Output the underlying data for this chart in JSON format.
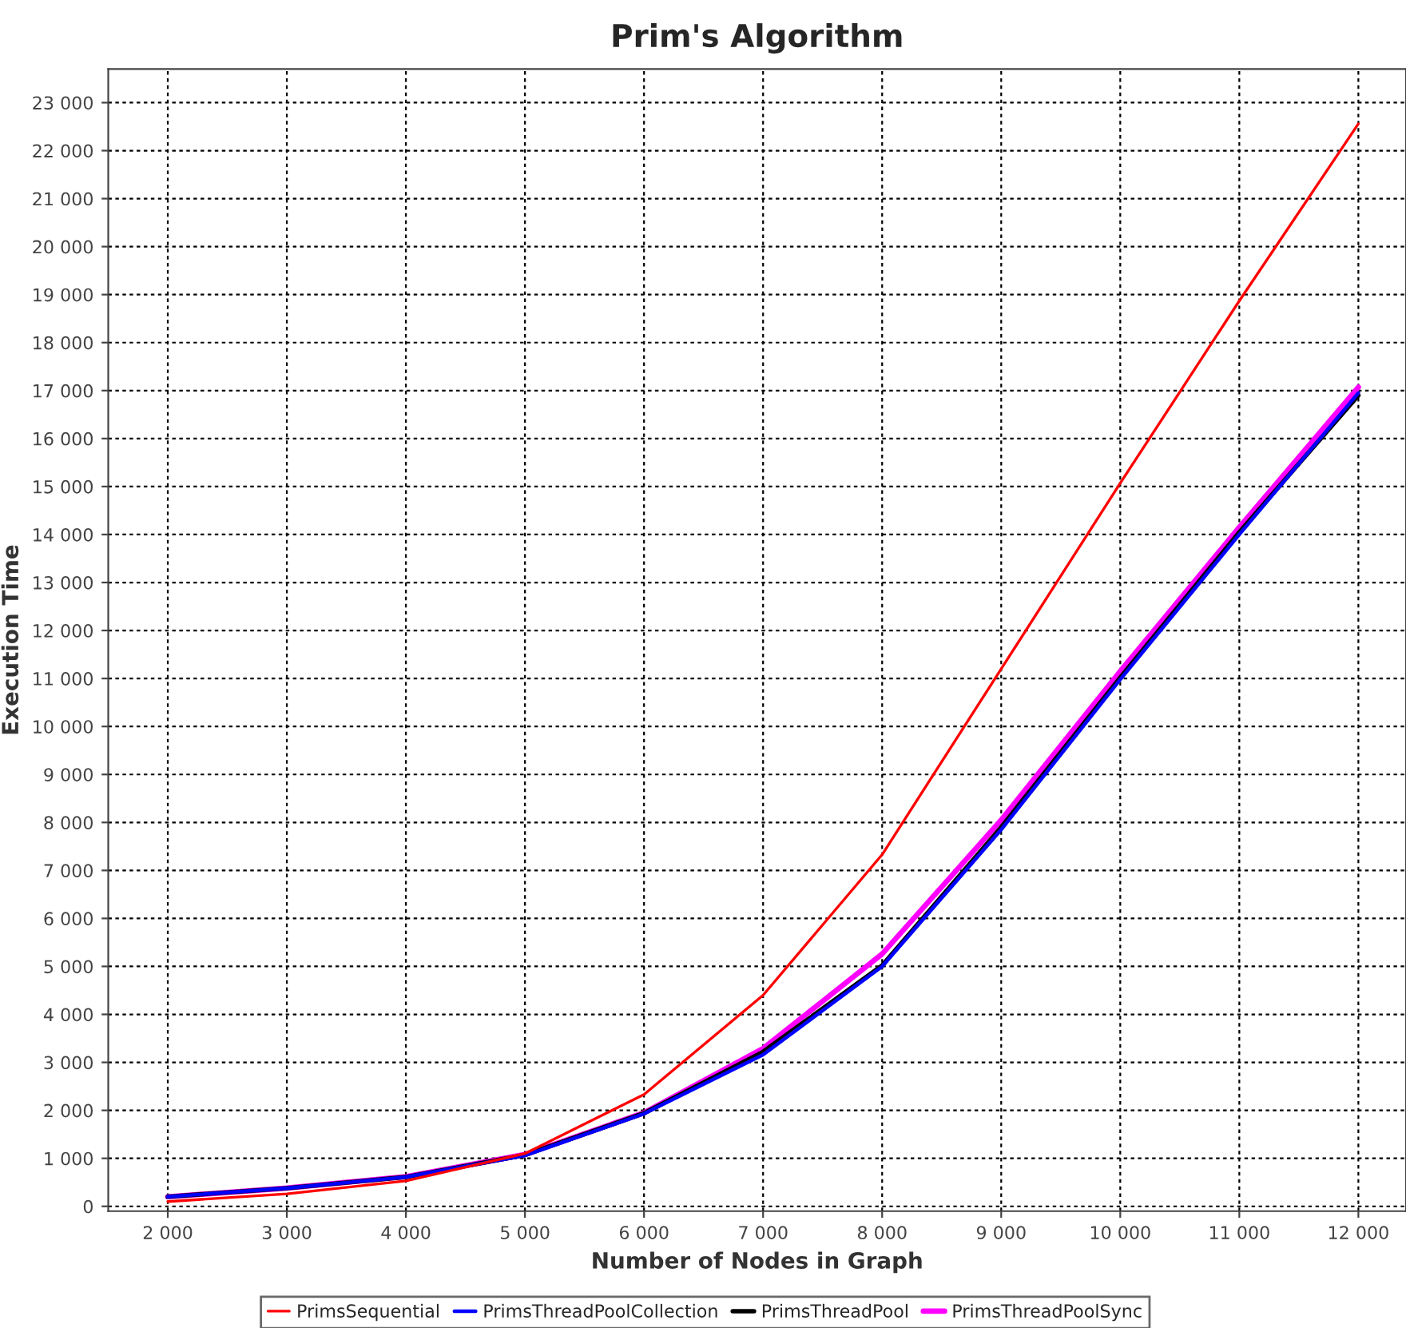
{
  "chart_data": {
    "type": "line",
    "title": "Prim's Algorithm",
    "xlabel": "Number of Nodes in Graph",
    "ylabel": "Execution Time",
    "x": [
      2000,
      3000,
      4000,
      5000,
      6000,
      7000,
      8000,
      9000,
      10000,
      11000,
      12000
    ],
    "series": [
      {
        "name": "PrimsSequential",
        "color": "#ff0000",
        "values": [
          100,
          260,
          530,
          1100,
          2330,
          4400,
          7330,
          11200,
          15070,
          18870,
          22560
        ]
      },
      {
        "name": "PrimsThreadPoolCollection",
        "color": "#0000ff",
        "values": [
          200,
          380,
          610,
          1060,
          1930,
          3160,
          5000,
          7850,
          10980,
          14000,
          16950
        ]
      },
      {
        "name": "PrimsThreadPool",
        "color": "#000000",
        "values": [
          200,
          380,
          610,
          1070,
          1940,
          3220,
          5020,
          7900,
          11020,
          14050,
          16900
        ]
      },
      {
        "name": "PrimsThreadPoolSync",
        "color": "#ff00ff",
        "values": [
          200,
          380,
          620,
          1080,
          1950,
          3290,
          5260,
          8050,
          11150,
          14150,
          17070
        ]
      }
    ],
    "xlim": [
      1500,
      12400
    ],
    "ylim": [
      -100,
      23700
    ],
    "xticks": [
      {
        "value": 2000,
        "label": "2 000"
      },
      {
        "value": 3000,
        "label": "3 000"
      },
      {
        "value": 4000,
        "label": "4 000"
      },
      {
        "value": 5000,
        "label": "5 000"
      },
      {
        "value": 6000,
        "label": "6 000"
      },
      {
        "value": 7000,
        "label": "7 000"
      },
      {
        "value": 8000,
        "label": "8 000"
      },
      {
        "value": 9000,
        "label": "9 000"
      },
      {
        "value": 10000,
        "label": "10 000"
      },
      {
        "value": 11000,
        "label": "11 000"
      },
      {
        "value": 12000,
        "label": "12 000"
      }
    ],
    "yticks": [
      0,
      {
        "value": 1000,
        "label": "1 000"
      },
      {
        "value": 2000,
        "label": "2 000"
      },
      {
        "value": 3000,
        "label": "3 000"
      },
      {
        "value": 4000,
        "label": "4 000"
      },
      {
        "value": 5000,
        "label": "5 000"
      },
      {
        "value": 6000,
        "label": "6 000"
      },
      {
        "value": 7000,
        "label": "7 000"
      },
      {
        "value": 8000,
        "label": "8 000"
      },
      {
        "value": 9000,
        "label": "9 000"
      },
      {
        "value": 10000,
        "label": "10 000"
      },
      {
        "value": 11000,
        "label": "11 000"
      },
      {
        "value": 12000,
        "label": "12 000"
      },
      {
        "value": 13000,
        "label": "13 000"
      },
      {
        "value": 14000,
        "label": "14 000"
      },
      {
        "value": 15000,
        "label": "15 000"
      },
      {
        "value": 16000,
        "label": "16 000"
      },
      {
        "value": 17000,
        "label": "17 000"
      },
      {
        "value": 18000,
        "label": "18 000"
      },
      {
        "value": 19000,
        "label": "19 000"
      },
      {
        "value": 20000,
        "label": "20 000"
      },
      {
        "value": 21000,
        "label": "21 000"
      },
      {
        "value": 22000,
        "label": "22 000"
      },
      {
        "value": 23000,
        "label": "23 000"
      }
    ],
    "grid": true,
    "legend": "bottom",
    "marker": "none",
    "line_style": "solid"
  }
}
